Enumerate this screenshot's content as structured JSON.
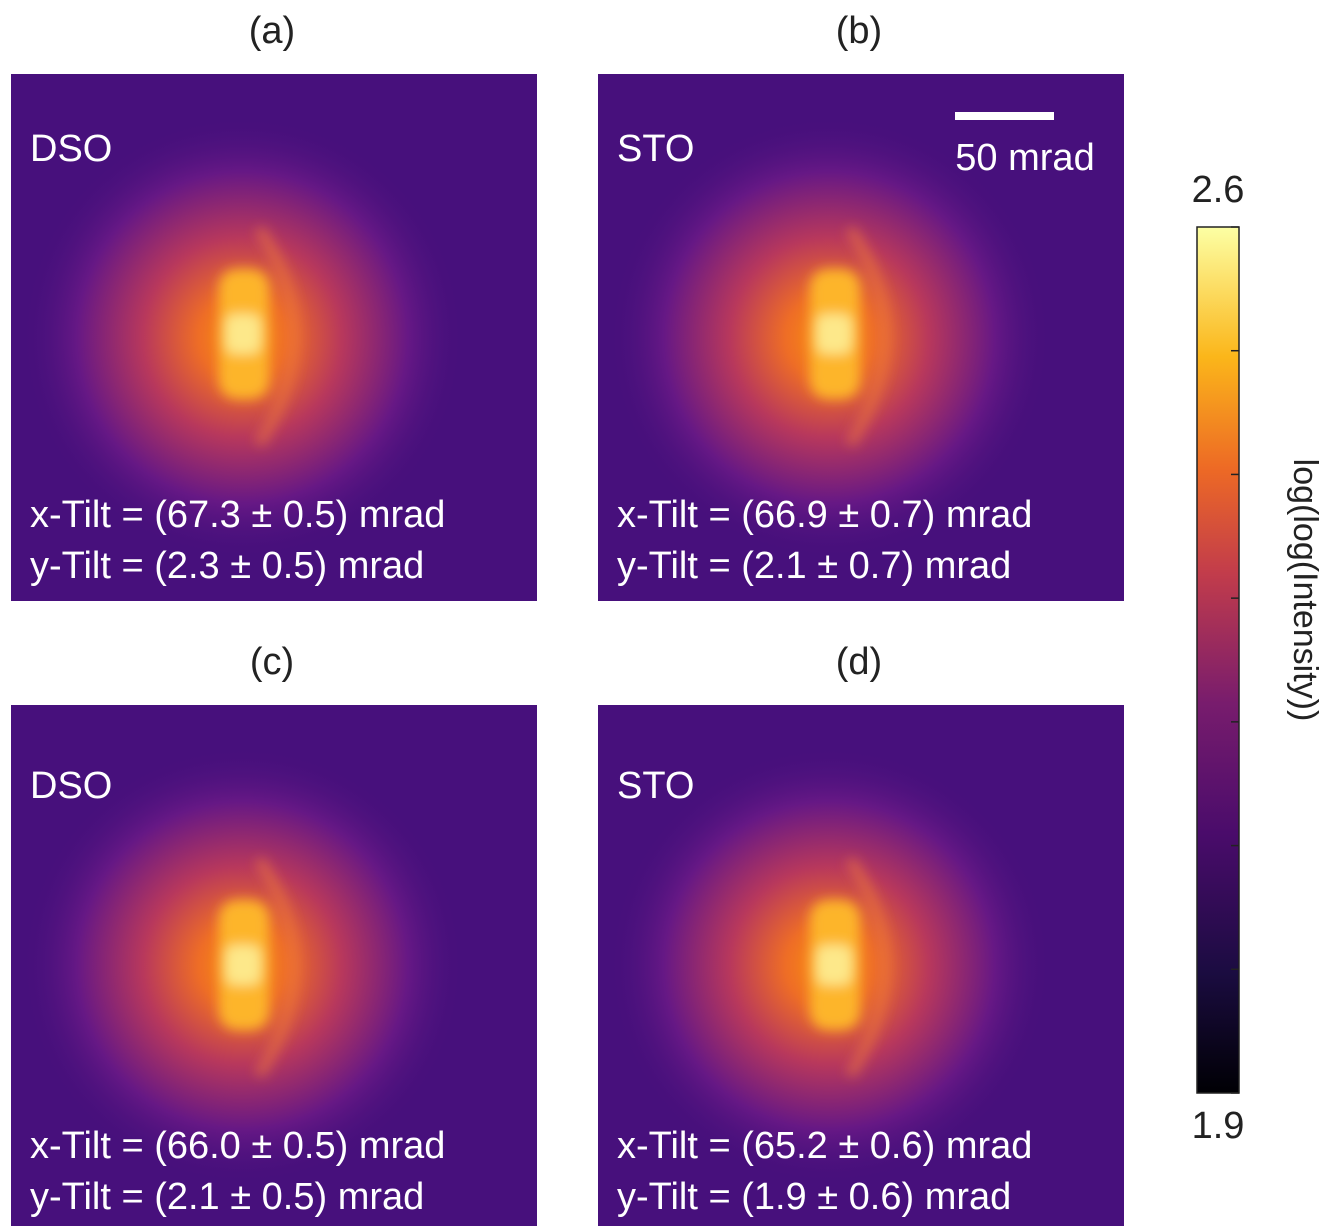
{
  "panels": [
    {
      "label": "(a)",
      "material": "DSO",
      "x_tilt": "x-Tilt = (67.3 ± 0.5) mrad",
      "y_tilt": "y-Tilt = (2.3 ± 0.5) mrad"
    },
    {
      "label": "(b)",
      "material": "STO",
      "x_tilt": "x-Tilt = (66.9 ± 0.7) mrad",
      "y_tilt": "y-Tilt = (2.1 ± 0.7) mrad"
    },
    {
      "label": "(c)",
      "material": "DSO",
      "x_tilt": "x-Tilt = (66.0 ± 0.5) mrad",
      "y_tilt": "y-Tilt = (2.1 ± 0.5) mrad"
    },
    {
      "label": "(d)",
      "material": "STO",
      "x_tilt": "x-Tilt = (65.2 ± 0.6) mrad",
      "y_tilt": "y-Tilt = (1.9 ± 0.6) mrad"
    }
  ],
  "scale_bar": "50 mrad",
  "colorbar": {
    "label": "log(log(Intensity))",
    "range": [
      1.9,
      2.6
    ],
    "ticks": [
      1.9,
      2.0,
      2.1,
      2.2,
      2.3,
      2.4,
      2.5,
      2.6
    ]
  }
}
